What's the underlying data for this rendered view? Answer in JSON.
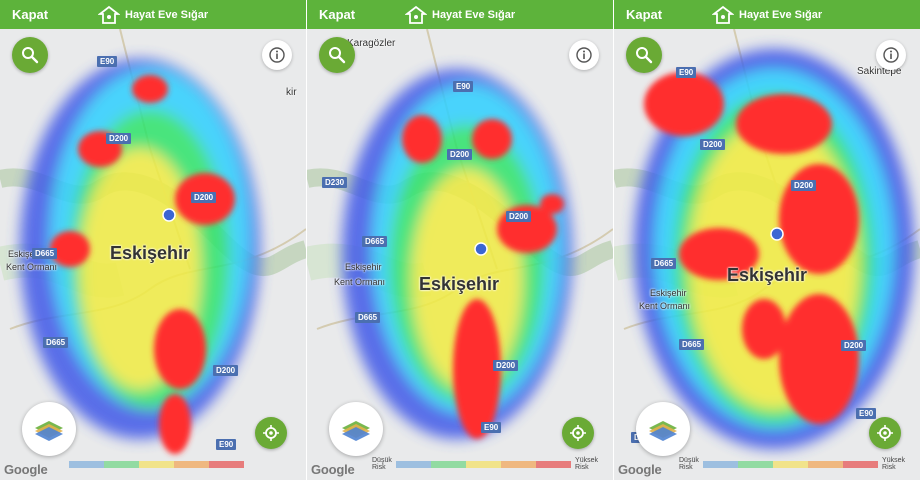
{
  "panels": [
    {
      "close_label": "Kapat",
      "brand": "Hayat Eve Sığar",
      "city_label": "Eskişehir",
      "forest_label_1": "Eskişehir",
      "forest_label_2": "Kent Ormanı",
      "extra_label": "kir",
      "roads": [
        "E90",
        "D200",
        "D200",
        "D665",
        "D665",
        "D200",
        "E90"
      ],
      "legend_low": "",
      "legend_high": ""
    },
    {
      "close_label": "Kapat",
      "brand": "Hayat Eve Sığar",
      "city_label": "Eskişehir",
      "forest_label_1": "Eskişehir",
      "forest_label_2": "Kent Ormanı",
      "extra_label": "Karagözler",
      "roads": [
        "E90",
        "D200",
        "D230",
        "D200",
        "D665",
        "D665",
        "D200",
        "E90"
      ],
      "legend_low": "Düşük Risk",
      "legend_high": "Yüksek Risk"
    },
    {
      "close_label": "Kapat",
      "brand": "Hayat Eve Sığar",
      "city_label": "Eskişehir",
      "forest_label_1": "Eskişehir",
      "forest_label_2": "Kent Ormanı",
      "extra_label": "Sakintepe",
      "roads": [
        "E90",
        "D200",
        "D200",
        "D665",
        "D665",
        "D200",
        "E90",
        "D230"
      ],
      "legend_low": "Düşük Risk",
      "legend_high": "Yüksek Risk"
    }
  ],
  "legend_colors": [
    "#9dbfe0",
    "#92dba2",
    "#f1e38a",
    "#efb880",
    "#e77c7c"
  ],
  "google_label": "Google",
  "icons": {
    "search": "search-icon",
    "info": "info-icon",
    "layers": "map-layers-icon",
    "locate": "locate-icon",
    "brand": "hayat-eve-sigar-logo-icon"
  }
}
